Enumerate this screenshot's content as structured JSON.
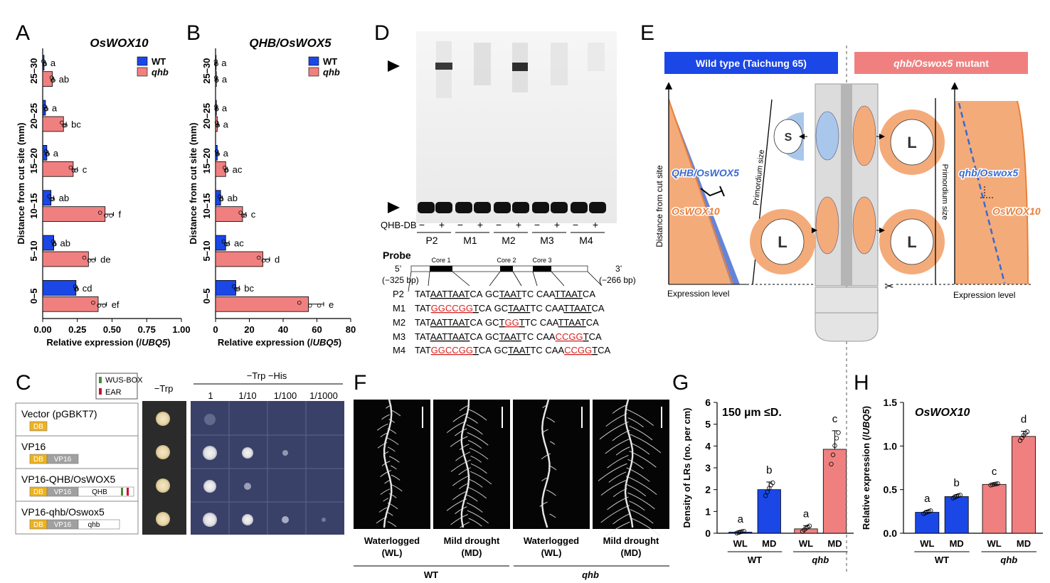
{
  "panel_letters": [
    "A",
    "B",
    "C",
    "D",
    "E",
    "F",
    "G",
    "H"
  ],
  "colors": {
    "wt": "#1a47e6",
    "qhb": "#f08080",
    "orange": "#e8803a",
    "dashblue": "#3a6ad0",
    "red_text": "#d62222"
  },
  "chart_data": [
    {
      "id": "A",
      "type": "bar",
      "orientation": "horizontal",
      "title": "OsWOX10",
      "xlabel_prefix": "Relative expression (/",
      "xlabel_italic": "UBQ5",
      "xlabel_suffix": ")",
      "ylabel": "Distance from cut site (mm)",
      "categories": [
        "0–5",
        "5–10",
        "10–15",
        "15–20",
        "20–25",
        "25–30"
      ],
      "xlim": [
        0,
        1.0
      ],
      "xticks": [
        0,
        0.25,
        0.5,
        0.75,
        1.0
      ],
      "xtick_labels": [
        "0.00",
        "0.25",
        "0.50",
        "0.75",
        "1.00"
      ],
      "legend": [
        "WT",
        "qhb"
      ],
      "series": [
        {
          "name": "WT",
          "values": [
            0.24,
            0.08,
            0.06,
            0.03,
            0.02,
            0.01
          ],
          "errors": [
            0.01,
            0.01,
            0.02,
            0.01,
            0.01,
            0.01
          ],
          "labels": [
            "cd",
            "ab",
            "ab",
            "a",
            "a",
            "a"
          ]
        },
        {
          "name": "qhb",
          "values": [
            0.4,
            0.33,
            0.45,
            0.22,
            0.15,
            0.07
          ],
          "errors": [
            0.06,
            0.05,
            0.06,
            0.03,
            0.02,
            0.01
          ],
          "labels": [
            "ef",
            "de",
            "f",
            "c",
            "bc",
            "ab"
          ]
        }
      ]
    },
    {
      "id": "B",
      "type": "bar",
      "orientation": "horizontal",
      "title": "QHB/OsWOX5",
      "xlabel_prefix": "Relative expression (/",
      "xlabel_italic": "UBQ5",
      "xlabel_suffix": ")",
      "ylabel": "Distance from cut site (mm)",
      "categories": [
        "0–5",
        "5–10",
        "10–15",
        "15–20",
        "20–25",
        "25–30"
      ],
      "xlim": [
        0,
        80
      ],
      "xticks": [
        0,
        20,
        40,
        60,
        80
      ],
      "xtick_labels": [
        "0",
        "20",
        "40",
        "60",
        "80"
      ],
      "legend": [
        "WT",
        "qhb"
      ],
      "series": [
        {
          "name": "WT",
          "values": [
            12,
            6,
            3,
            1,
            0.5,
            0.3
          ],
          "errors": [
            2,
            2,
            1,
            0.5,
            0.3,
            0.2
          ],
          "labels": [
            "bc",
            "ac",
            "ab",
            "a",
            "a",
            "a"
          ]
        },
        {
          "name": "qhb",
          "values": [
            55,
            28,
            16,
            6,
            1,
            0.5
          ],
          "errors": [
            9,
            4,
            2,
            1,
            0.5,
            0.3
          ],
          "labels": [
            "e",
            "d",
            "c",
            "ac",
            "a",
            "a"
          ]
        }
      ]
    },
    {
      "id": "G",
      "type": "bar",
      "title": "150 µm ≤D.",
      "ylabel": "Density of LRs (no. per cm)",
      "ylim": [
        0,
        6
      ],
      "yticks": [
        0,
        1,
        2,
        3,
        4,
        5,
        6
      ],
      "categories": [
        "WL",
        "MD",
        "WL",
        "MD"
      ],
      "groups": [
        "WT",
        "qhb"
      ],
      "values": [
        0.05,
        2.0,
        0.2,
        3.85
      ],
      "errors": [
        0.05,
        0.35,
        0.15,
        0.85
      ],
      "labels": [
        "a",
        "b",
        "a",
        "c"
      ],
      "series_of_bar": [
        "WT",
        "WT",
        "qhb",
        "qhb"
      ]
    },
    {
      "id": "H",
      "type": "bar",
      "title": "OsWOX10",
      "ylabel_prefix": "Relative expression (/",
      "ylabel_italic": "UBQ5",
      "ylabel_suffix": ")",
      "ylim": [
        0,
        1.5
      ],
      "yticks": [
        0,
        0.5,
        1.0,
        1.5
      ],
      "ytick_labels": [
        "0.0",
        "0.5",
        "1.0",
        "1.5"
      ],
      "categories": [
        "WL",
        "MD",
        "WL",
        "MD"
      ],
      "groups": [
        "WT",
        "qhb"
      ],
      "values": [
        0.24,
        0.42,
        0.56,
        1.11
      ],
      "errors": [
        0.02,
        0.02,
        0.01,
        0.06
      ],
      "labels": [
        "a",
        "b",
        "c",
        "d"
      ],
      "series_of_bar": [
        "WT",
        "WT",
        "qhb",
        "qhb"
      ]
    }
  ],
  "panel_c": {
    "legend": [
      "WUS-BOX",
      "EAR"
    ],
    "col_trp": "−Trp",
    "col_trphis": "−Trp −His",
    "dilutions": [
      "1",
      "1/10",
      "1/100",
      "1/1000"
    ],
    "constructs": [
      {
        "name": "Vector (pGBKT7)",
        "parts": [
          "DB"
        ]
      },
      {
        "name": "VP16",
        "parts": [
          "DB",
          "VP16"
        ]
      },
      {
        "name": "VP16-QHB/OsWOX5",
        "parts": [
          "DB",
          "VP16",
          "QHB"
        ]
      },
      {
        "name": "VP16-qhb/Oswox5",
        "parts": [
          "DB",
          "VP16",
          "qhb"
        ]
      }
    ]
  },
  "panel_d": {
    "protein_label": "QHB-DB",
    "lanes": [
      "P2",
      "M1",
      "M2",
      "M3",
      "M4"
    ],
    "signs": [
      "−",
      "+"
    ],
    "probe_title": "Probe",
    "five_prime": "5’",
    "three_prime": "3’",
    "start_bp": "(−325 bp)",
    "end_bp": "(−266 bp)",
    "cores": [
      "Core 1",
      "Core 2",
      "Core 3"
    ],
    "sequences": [
      {
        "name": "P2",
        "text": "TATAATTAATCA GCTAATTC CAATTAATCA"
      },
      {
        "name": "M1",
        "text": "TATGGCCGGTCA GCTAATTC CAATTAATCA"
      },
      {
        "name": "M2",
        "text": "TATAATTAATCA GCTGGTTC CAATTAATCA"
      },
      {
        "name": "M3",
        "text": "TATAATTAATCA GCTAATTC CAACCGGTCA"
      },
      {
        "name": "M4",
        "text": "TATGGCCGGTCA GCTAATTC CAACCGGTCA"
      }
    ]
  },
  "panel_e": {
    "wt_header": "Wild type (Taichung 65)",
    "mut_header_italic": "qhb/Oswox5",
    "mut_header_suffix": " mutant",
    "y_label": "Distance from cut site",
    "x_label": "Expression level",
    "primordium": "Primordium size",
    "qhb_gene": "QHB/OsWOX5",
    "wox10_gene": "OsWOX10",
    "qhb_mut_gene": "qhb/Oswox5",
    "small": "S",
    "large": "L"
  },
  "panel_f": {
    "conditions": [
      "Waterlogged",
      "(WL)",
      "Mild drought",
      "(MD)",
      "Waterlogged",
      "(WL)",
      "Mild drought",
      "(MD)"
    ],
    "genotypes": [
      "WT",
      "qhb"
    ]
  }
}
